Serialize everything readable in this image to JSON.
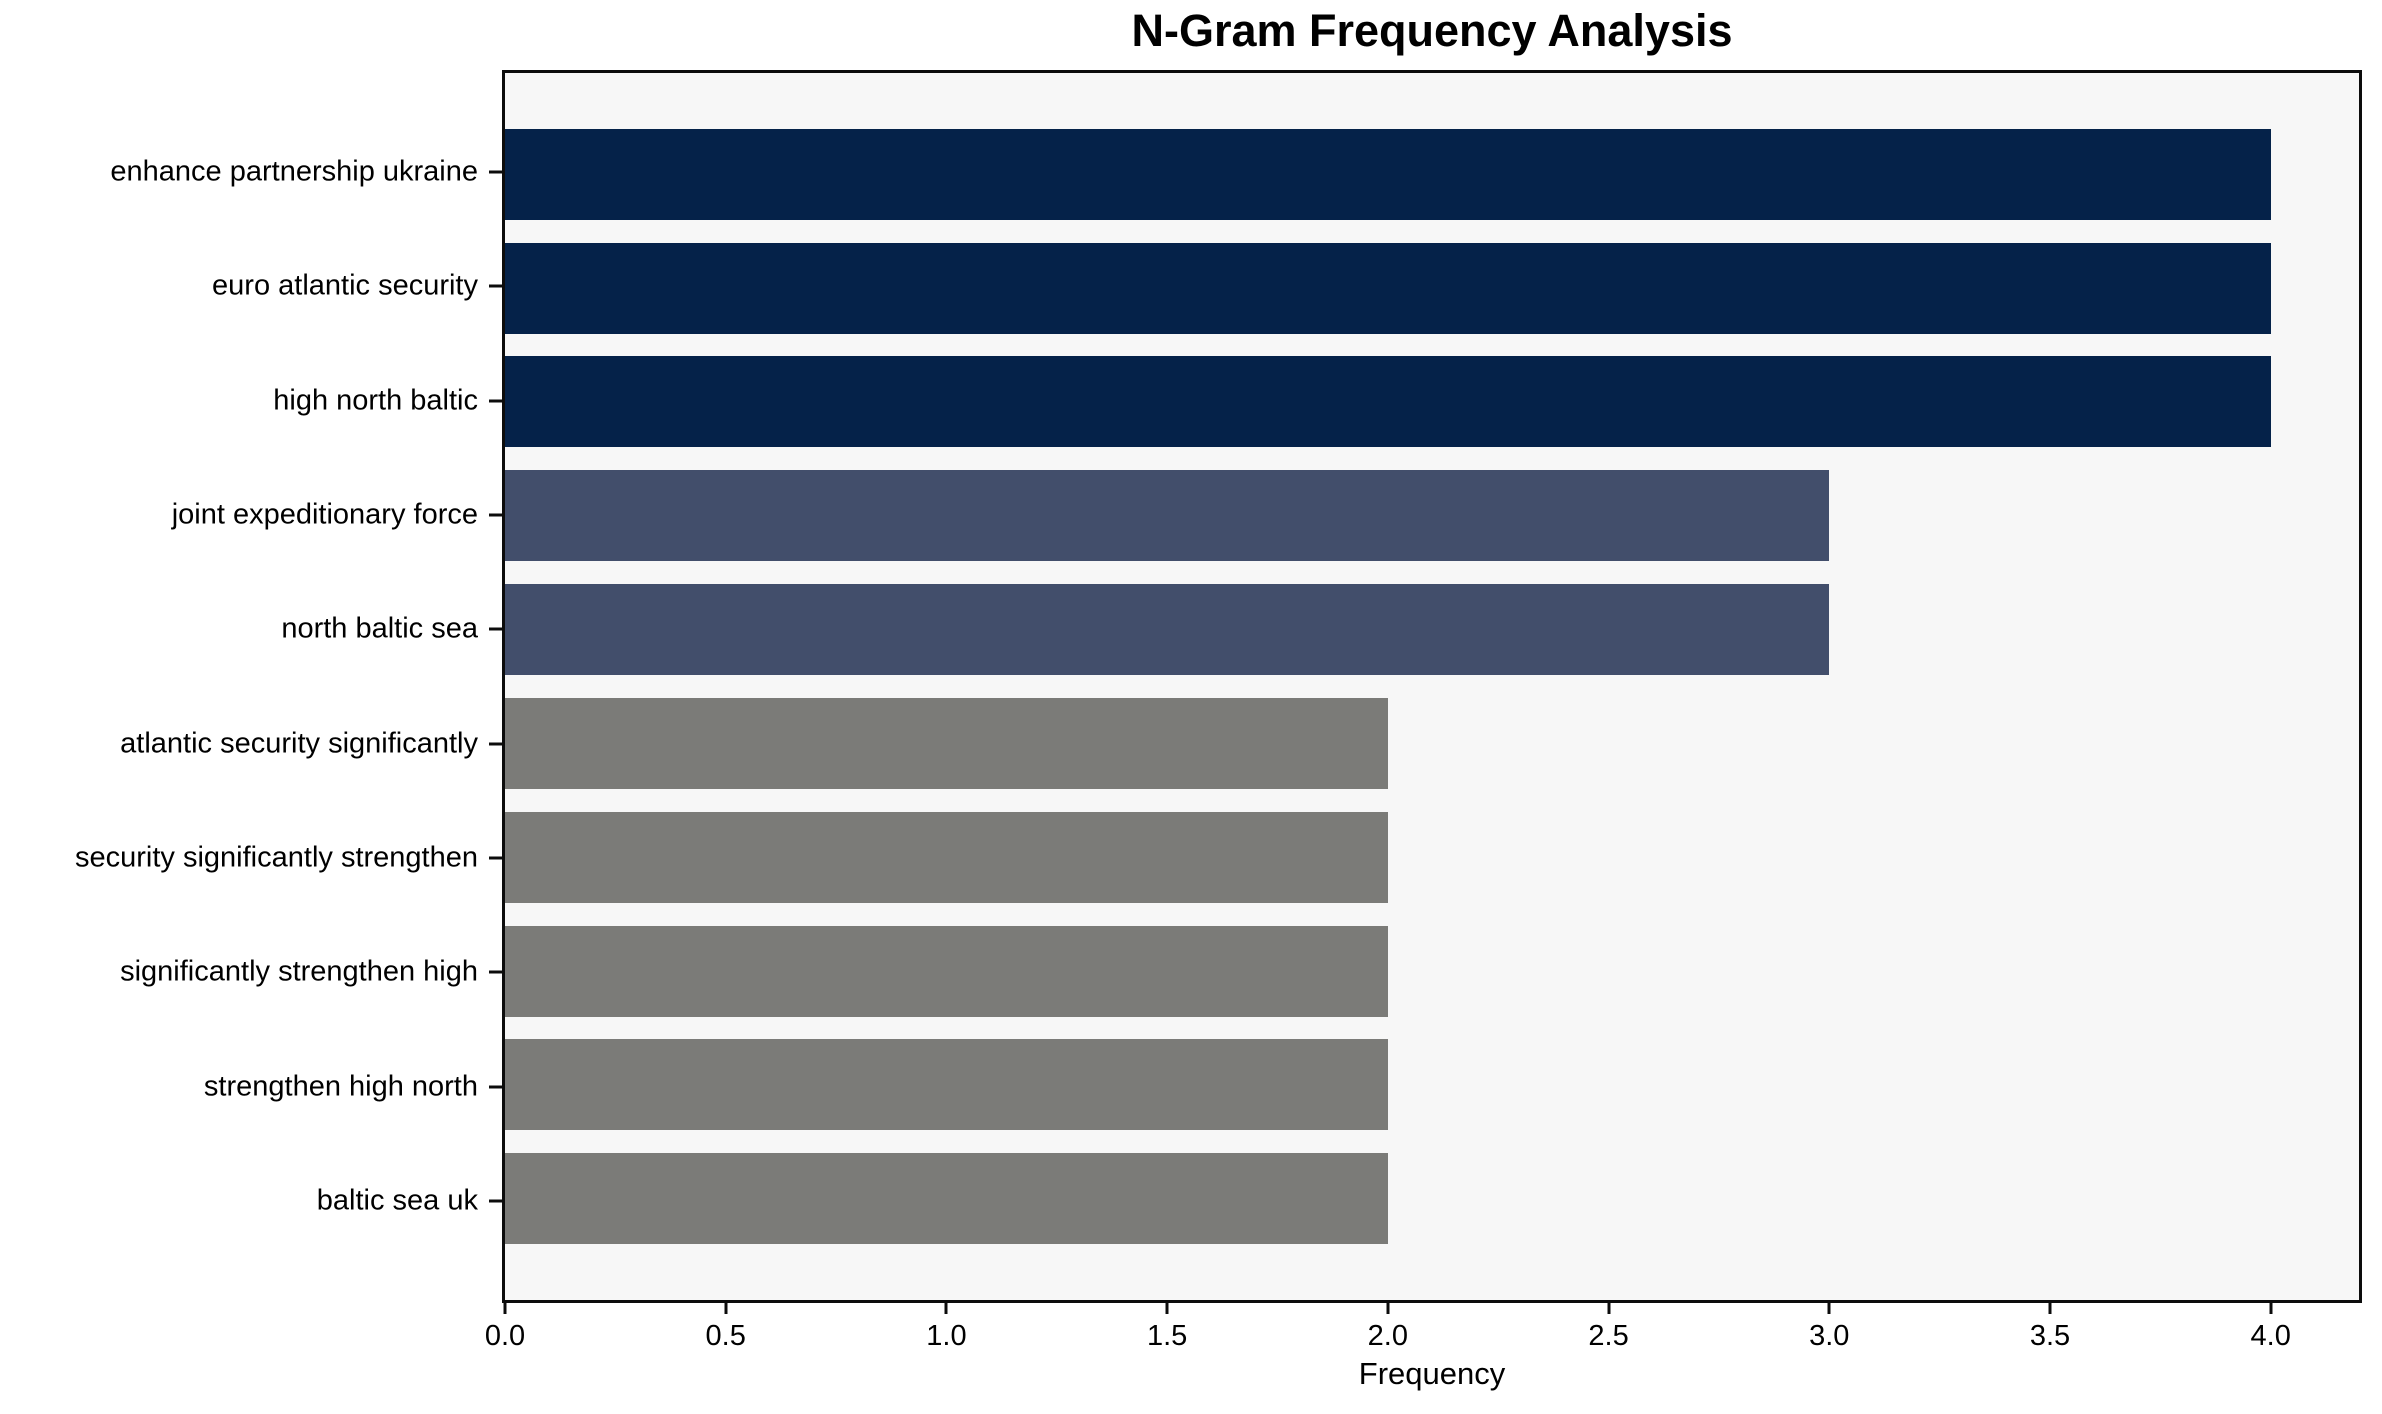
{
  "chart_data": {
    "type": "bar",
    "orientation": "horizontal",
    "title": "N-Gram Frequency Analysis",
    "xlabel": "Frequency",
    "ylabel": "",
    "categories": [
      "enhance partnership ukraine",
      "euro atlantic security",
      "high north baltic",
      "joint expeditionary force",
      "north baltic sea",
      "atlantic security significantly",
      "security significantly strengthen",
      "significantly strengthen high",
      "strengthen high north",
      "baltic sea uk"
    ],
    "values": [
      4,
      4,
      4,
      3,
      3,
      2,
      2,
      2,
      2,
      2
    ],
    "bar_colors": [
      "#052249",
      "#052249",
      "#052249",
      "#424e6b",
      "#424e6b",
      "#7b7b78",
      "#7b7b78",
      "#7b7b78",
      "#7b7b78",
      "#7b7b78"
    ],
    "x_tick_values": [
      0.0,
      0.5,
      1.0,
      1.5,
      2.0,
      2.5,
      3.0,
      3.5,
      4.0
    ],
    "x_tick_labels": [
      "0.0",
      "0.5",
      "1.0",
      "1.5",
      "2.0",
      "2.5",
      "3.0",
      "3.5",
      "4.0"
    ],
    "xlim": [
      0,
      4.2
    ],
    "bar_height_frac": 0.8,
    "grid": false,
    "legend": false,
    "colors": {
      "plot_bg": "#f7f7f7",
      "figure_bg": "#ffffff",
      "spine": "#0c0c0c",
      "text": "#000000"
    }
  }
}
